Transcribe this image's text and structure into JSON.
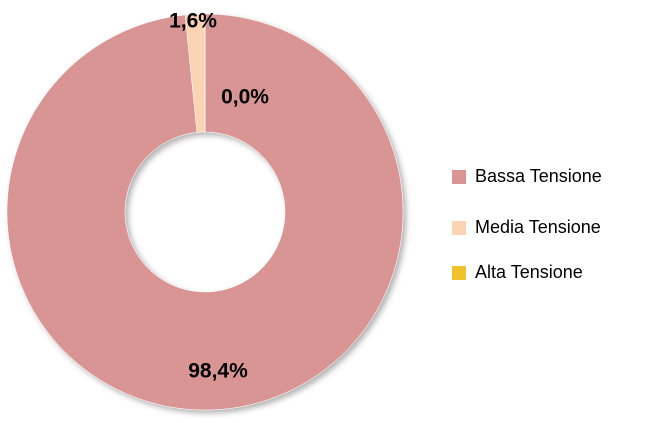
{
  "chart_data": {
    "type": "donut",
    "categories": [
      "Bassa Tensione",
      "Media Tensione",
      "Alta Tensione"
    ],
    "values": [
      98.4,
      1.6,
      0.0
    ],
    "value_labels": [
      "98,4%",
      "1,6%",
      "0,0%"
    ],
    "colors": [
      "#d99594",
      "#fbd4b4",
      "#f2c12e"
    ],
    "legend": "right"
  }
}
